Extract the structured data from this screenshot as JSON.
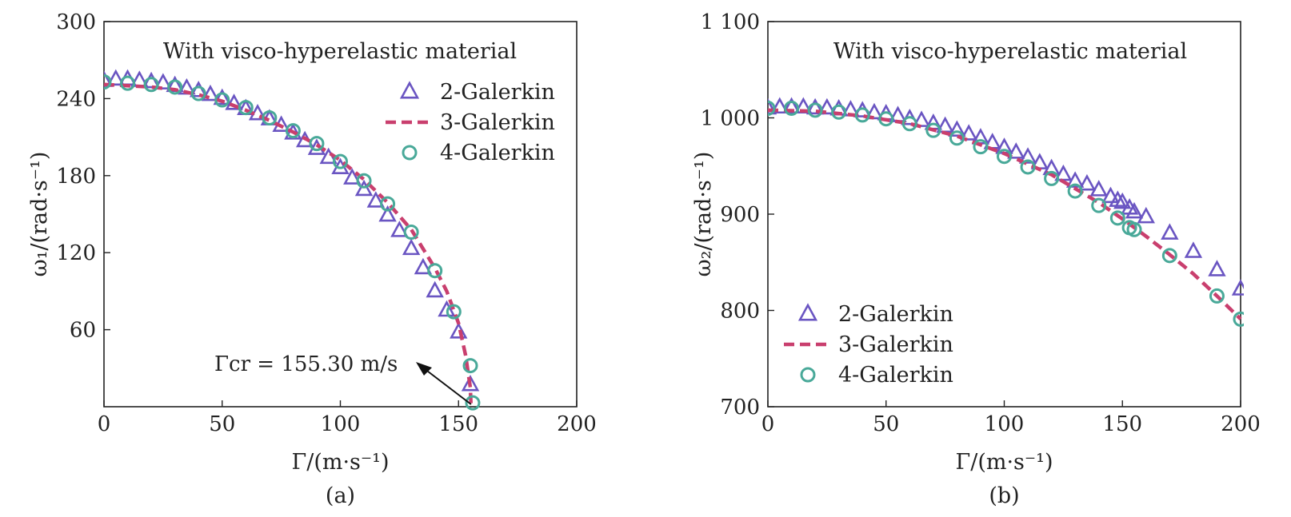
{
  "chart_data": [
    {
      "id": "a",
      "type": "scatter",
      "title": "With visco-hyperelastic material",
      "panel_label": "(a)",
      "xlabel": "Γ/(m·s⁻¹)",
      "ylabel": "ω₁/(rad·s⁻¹)",
      "xlim": [
        0,
        200
      ],
      "ylim": [
        0,
        300
      ],
      "x_ticks": [
        "0",
        "50",
        "100",
        "150",
        "200"
      ],
      "y_ticks": [
        "60",
        "120",
        "180",
        "240",
        "300"
      ],
      "legend_position": "top-right",
      "annotation": {
        "text": "Γcr = 155.30 m/s",
        "points_to": [
          155.3,
          0
        ]
      },
      "series": [
        {
          "name": "2-Galerkin",
          "marker": "triangle",
          "color": "#6a55c2",
          "x": [
            0,
            5,
            10,
            15,
            20,
            25,
            30,
            35,
            40,
            45,
            50,
            55,
            60,
            65,
            70,
            75,
            80,
            85,
            90,
            95,
            100,
            105,
            110,
            115,
            120,
            125,
            130,
            135,
            140,
            145,
            150,
            155
          ],
          "y": [
            254,
            255,
            255,
            254,
            253,
            252,
            250,
            248,
            246,
            243,
            240,
            236,
            232,
            228,
            224,
            219,
            213,
            207,
            201,
            194,
            186,
            178,
            169,
            160,
            149,
            137,
            123,
            108,
            90,
            75,
            58,
            17
          ]
        },
        {
          "name": "3-Galerkin",
          "marker": "dashed-line",
          "color": "#c93f6e",
          "x": [
            0,
            10,
            20,
            30,
            40,
            50,
            60,
            70,
            80,
            90,
            100,
            110,
            120,
            130,
            140,
            145,
            150,
            153,
            155,
            155.3
          ],
          "y": [
            251,
            250,
            249,
            247,
            243,
            238,
            231,
            223,
            214,
            204,
            192,
            177,
            159,
            138,
            108,
            90,
            65,
            40,
            15,
            0
          ]
        },
        {
          "name": "4-Galerkin",
          "marker": "circle",
          "color": "#49a999",
          "x": [
            0,
            10,
            20,
            30,
            40,
            50,
            60,
            70,
            80,
            90,
            100,
            110,
            120,
            130,
            140,
            148,
            155,
            156
          ],
          "y": [
            253,
            252,
            251,
            249,
            244,
            239,
            233,
            225,
            215,
            205,
            191,
            176,
            158,
            136,
            106,
            74,
            32,
            3
          ]
        }
      ]
    },
    {
      "id": "b",
      "type": "scatter",
      "title": "With visco-hyperelastic material",
      "panel_label": "(b)",
      "xlabel": "Γ/(m·s⁻¹)",
      "ylabel": "ω₂/(rad·s⁻¹)",
      "xlim": [
        0,
        200
      ],
      "ylim": [
        700,
        1100
      ],
      "x_ticks": [
        "0",
        "50",
        "100",
        "150",
        "200"
      ],
      "y_ticks": [
        "700",
        "800",
        "900",
        "1 000",
        "1 100"
      ],
      "legend_position": "bottom-left",
      "series": [
        {
          "name": "2-Galerkin",
          "marker": "triangle",
          "color": "#6a55c2",
          "x": [
            0,
            5,
            10,
            15,
            20,
            25,
            30,
            35,
            40,
            45,
            50,
            55,
            60,
            65,
            70,
            75,
            80,
            85,
            90,
            95,
            100,
            105,
            110,
            115,
            120,
            125,
            130,
            135,
            140,
            145,
            148,
            150,
            153,
            155,
            160,
            170,
            180,
            190,
            200
          ],
          "y": [
            1010,
            1011,
            1011,
            1011,
            1010,
            1010,
            1009,
            1008,
            1007,
            1005,
            1004,
            1002,
            999,
            997,
            994,
            991,
            987,
            983,
            979,
            974,
            969,
            964,
            959,
            953,
            947,
            941,
            934,
            931,
            925,
            918,
            914,
            912,
            906,
            902,
            897,
            880,
            861,
            842,
            822
          ]
        },
        {
          "name": "3-Galerkin",
          "marker": "dashed-line",
          "color": "#c93f6e",
          "x": [
            0,
            20,
            40,
            60,
            80,
            100,
            120,
            140,
            150,
            160,
            170,
            180,
            190,
            200
          ],
          "y": [
            1008,
            1007,
            1002,
            994,
            981,
            963,
            941,
            912,
            895,
            877,
            858,
            838,
            815,
            791
          ]
        },
        {
          "name": "4-Galerkin",
          "marker": "circle",
          "color": "#49a999",
          "x": [
            0,
            10,
            20,
            30,
            40,
            50,
            60,
            70,
            80,
            90,
            100,
            110,
            120,
            130,
            140,
            148,
            153,
            155,
            170,
            190,
            200
          ],
          "y": [
            1010,
            1010,
            1008,
            1006,
            1003,
            999,
            994,
            987,
            979,
            970,
            960,
            949,
            937,
            924,
            909,
            896,
            886,
            884,
            857,
            815,
            791
          ]
        }
      ]
    }
  ]
}
